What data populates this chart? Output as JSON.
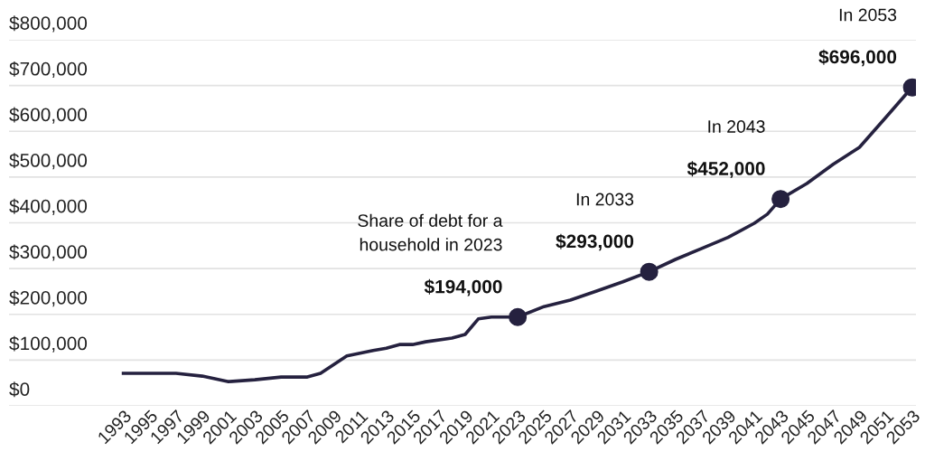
{
  "chart_data": {
    "type": "line",
    "x": [
      1993,
      1997,
      1999,
      2001,
      2003,
      2005,
      2007,
      2008,
      2010,
      2012,
      2013,
      2014,
      2015,
      2016,
      2018,
      2019,
      2020,
      2021,
      2023,
      2025,
      2027,
      2029,
      2031,
      2033,
      2035,
      2037,
      2039,
      2041,
      2042,
      2043,
      2045,
      2047,
      2049,
      2051,
      2053
    ],
    "series": [
      {
        "color": "#25213f",
        "marker": "none",
        "values": [
          71000,
          71000,
          65000,
          53000,
          57000,
          63000,
          63000,
          71000,
          109000,
          121000,
          126000,
          134000,
          134000,
          140000,
          148000,
          156000,
          190000,
          194000,
          194000,
          217000,
          231000,
          251000,
          271000,
          293000,
          320000,
          344000,
          368000,
          399000,
          419000,
          452000,
          486000,
          528000,
          565000,
          630000,
          696000
        ]
      },
      {
        "type": "scatter",
        "color": "#25213f",
        "marker": "circle",
        "x": [
          2023,
          2033,
          2043,
          2053
        ],
        "values": [
          194000,
          293000,
          452000,
          696000
        ]
      }
    ],
    "xlim": [
      1984.3,
      2053.3
    ],
    "xticks": [
      1993,
      1995,
      1997,
      1999,
      2001,
      2003,
      2005,
      2007,
      2009,
      2011,
      2013,
      2015,
      2017,
      2019,
      2021,
      2023,
      2025,
      2027,
      2029,
      2031,
      2033,
      2035,
      2037,
      2039,
      2041,
      2043,
      2045,
      2047,
      2049,
      2051,
      2053
    ],
    "ylim": [
      0,
      800000
    ],
    "yticks": [
      {
        "value": 0,
        "label": "$0"
      },
      {
        "value": 100000,
        "label": "$100,000"
      },
      {
        "value": 200000,
        "label": "$200,000"
      },
      {
        "value": 300000,
        "label": "$300,000"
      },
      {
        "value": 400000,
        "label": "$400,000"
      },
      {
        "value": 500000,
        "label": "$500,000"
      },
      {
        "value": 600000,
        "label": "$600,000"
      },
      {
        "value": 700000,
        "label": "$700,000"
      },
      {
        "value": 800000,
        "label": "$800,000"
      }
    ],
    "grid": "y",
    "annotations": [
      "Share of debt for a\nhousehold in 2023",
      {
        "text": "$194,000",
        "x": 2023,
        "y": 194000
      },
      "In 2033",
      {
        "text": "$293,000",
        "x": 2033,
        "y": 293000
      },
      "In 2043",
      {
        "text": "$452,000",
        "x": 2043,
        "y": 452000
      },
      "In 2053",
      {
        "text": "$696,000",
        "x": 2053,
        "y": 696000
      }
    ]
  }
}
